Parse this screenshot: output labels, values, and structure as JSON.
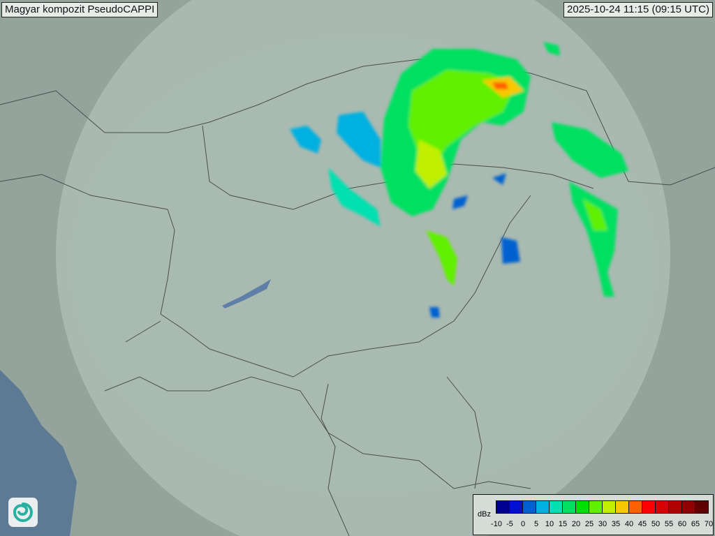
{
  "header": {
    "title": "Magyar kompozit  PseudoCAPPI",
    "timestamp": "2025-10-24 11:15 (09:15 UTC)"
  },
  "legend": {
    "unit": "dBz",
    "ticks": [
      "-10",
      "-5",
      "0",
      "5",
      "10",
      "15",
      "20",
      "25",
      "30",
      "35",
      "40",
      "45",
      "50",
      "55",
      "60",
      "65",
      "70"
    ],
    "colors": [
      "#000090",
      "#0010d0",
      "#0060d0",
      "#00b0e0",
      "#00e0b0",
      "#00e060",
      "#00e000",
      "#60f000",
      "#c0f000",
      "#f8c800",
      "#ff6000",
      "#ff0000",
      "#d80000",
      "#b00000",
      "#900000",
      "#600000"
    ]
  },
  "logo": {
    "icon": "spiral-logo-icon"
  },
  "map": {
    "background": "#8fa09a",
    "coverage": "#b8c8c0",
    "sea": "#5d7a94",
    "lake": "#5f7fa8"
  }
}
